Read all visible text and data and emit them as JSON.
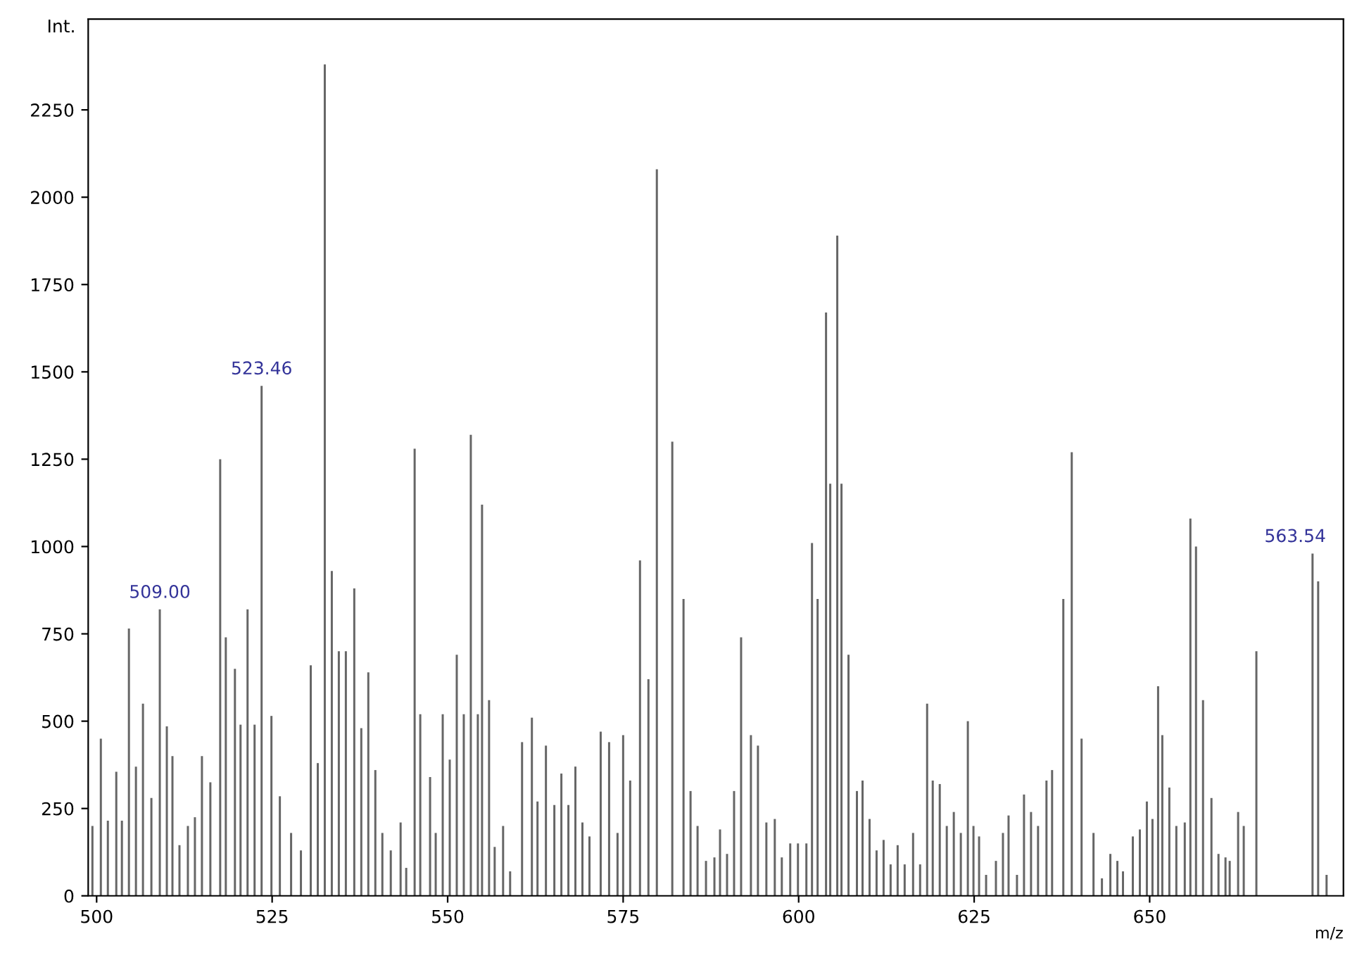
{
  "chart_data": {
    "type": "bar",
    "xlabel": "m/z",
    "ylabel": "Int.",
    "x": [
      499.4,
      500.6,
      501.6,
      502.8,
      503.6,
      504.6,
      505.6,
      506.6,
      507.8,
      509.0,
      510.0,
      510.8,
      511.8,
      513.0,
      514.0,
      515.0,
      516.2,
      517.6,
      518.4,
      519.7,
      520.5,
      521.5,
      522.5,
      523.5,
      524.9,
      526.1,
      527.7,
      529.1,
      530.5,
      531.5,
      532.5,
      533.5,
      534.5,
      535.5,
      536.7,
      537.7,
      538.7,
      539.7,
      540.7,
      541.9,
      543.3,
      544.1,
      545.3,
      546.1,
      547.5,
      548.3,
      549.3,
      550.3,
      551.3,
      552.3,
      553.3,
      554.3,
      554.9,
      555.9,
      556.7,
      557.9,
      558.9,
      560.6,
      562.0,
      562.8,
      564.0,
      565.2,
      566.2,
      567.2,
      568.2,
      569.2,
      570.2,
      571.8,
      573.0,
      574.2,
      575.0,
      576.0,
      577.4,
      578.6,
      579.8,
      582.0,
      583.6,
      584.6,
      585.6,
      586.8,
      588.0,
      588.8,
      589.8,
      590.8,
      591.8,
      593.2,
      594.2,
      595.4,
      596.6,
      597.6,
      598.8,
      599.9,
      601.1,
      601.9,
      602.7,
      603.9,
      604.5,
      605.5,
      606.1,
      607.1,
      608.3,
      609.1,
      610.1,
      611.1,
      612.1,
      613.1,
      614.1,
      615.1,
      616.3,
      617.3,
      618.3,
      619.1,
      620.1,
      621.1,
      622.1,
      623.1,
      624.1,
      624.9,
      625.7,
      626.7,
      628.1,
      629.1,
      629.9,
      631.1,
      632.1,
      633.1,
      634.1,
      635.3,
      636.1,
      637.7,
      638.9,
      640.3,
      642.0,
      643.2,
      644.4,
      645.4,
      646.2,
      647.6,
      648.6,
      649.6,
      650.4,
      651.2,
      651.8,
      652.8,
      653.8,
      655.0,
      655.8,
      656.6,
      657.6,
      658.8,
      659.8,
      660.8,
      661.4,
      662.6,
      663.4,
      665.2,
      673.2,
      674.0,
      675.2
    ],
    "values": [
      200,
      450,
      215,
      355,
      215,
      765,
      370,
      550,
      280,
      820,
      485,
      400,
      145,
      200,
      225,
      400,
      325,
      1250,
      740,
      650,
      490,
      820,
      490,
      1460,
      515,
      285,
      180,
      130,
      660,
      380,
      2380,
      930,
      700,
      700,
      880,
      480,
      640,
      360,
      180,
      130,
      210,
      80,
      1280,
      520,
      340,
      180,
      520,
      390,
      690,
      520,
      1320,
      520,
      1120,
      560,
      140,
      200,
      70,
      440,
      510,
      270,
      430,
      260,
      350,
      260,
      370,
      210,
      170,
      470,
      440,
      180,
      460,
      330,
      960,
      620,
      2080,
      1300,
      850,
      300,
      200,
      100,
      110,
      190,
      120,
      300,
      740,
      460,
      430,
      210,
      220,
      110,
      150,
      150,
      150,
      1010,
      850,
      1670,
      1180,
      1890,
      1180,
      690,
      300,
      330,
      220,
      130,
      160,
      90,
      145,
      90,
      180,
      90,
      550,
      330,
      320,
      200,
      240,
      180,
      500,
      200,
      170,
      60,
      100,
      180,
      230,
      60,
      290,
      240,
      200,
      330,
      360,
      850,
      1270,
      450,
      180,
      50,
      120,
      100,
      70,
      170,
      190,
      270,
      220,
      600,
      460,
      310,
      200,
      210,
      1080,
      1000,
      560,
      280,
      120,
      110,
      100,
      240,
      200,
      700,
      980,
      900,
      60
    ],
    "color": "#666666",
    "xlim": [
      498.8,
      677.6
    ],
    "ylim": [
      0,
      2510
    ],
    "xticks": [
      500,
      525,
      550,
      575,
      600,
      625,
      650
    ],
    "yticks": [
      0,
      250,
      500,
      750,
      1000,
      1250,
      1500,
      1750,
      2000,
      2250
    ],
    "annotations": [
      {
        "text": "509.00",
        "x": 509.0,
        "y": 820
      },
      {
        "text": "523.46",
        "x": 523.5,
        "y": 1460
      },
      {
        "text": "563.54",
        "x": 674.0,
        "y": 980
      }
    ],
    "grid": false
  }
}
